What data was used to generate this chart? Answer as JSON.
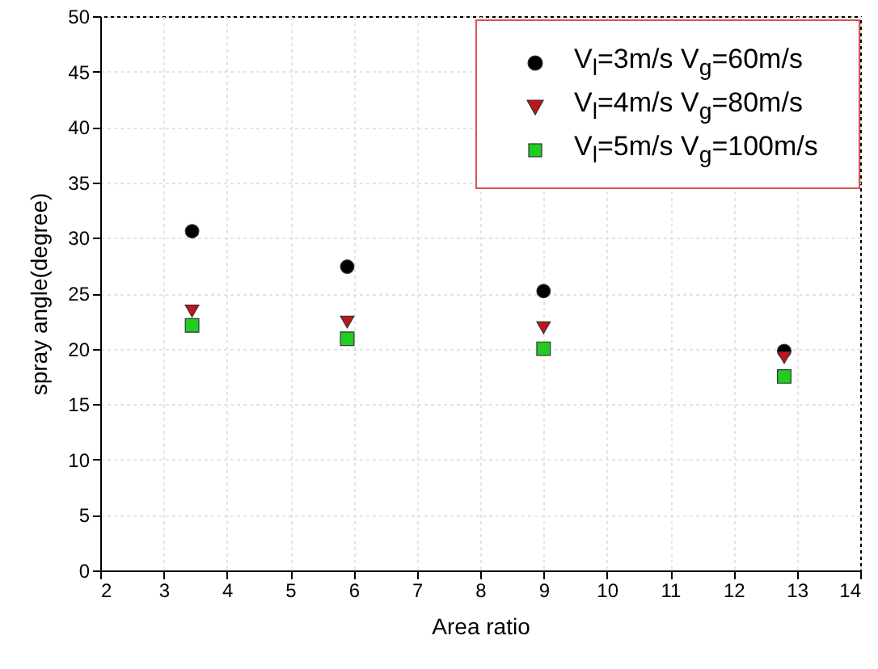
{
  "chart_data": {
    "type": "scatter",
    "xlabel": "Area ratio",
    "ylabel": "spray angle(degree)",
    "x": [
      3.45,
      5.9,
      9.0,
      12.8
    ],
    "series": [
      {
        "name": "V$_{l}$=3m/s V$_{g}$=60m/s",
        "color": "#000000",
        "marker": "circle",
        "values": [
          30.6,
          27.4,
          25.2,
          19.8
        ]
      },
      {
        "name": "V$_{l}$=4m/s V$_{g}$=80m/s",
        "color": "#c0141e",
        "marker": "triangle",
        "values": [
          23.4,
          22.4,
          21.9,
          19.2
        ]
      },
      {
        "name": "V$_{l}$=5m/s V$_{g}$=100m/s",
        "color": "#22cc22",
        "marker": "square",
        "values": [
          22.1,
          20.9,
          20.0,
          17.5
        ]
      }
    ],
    "xlim": [
      2,
      14
    ],
    "xticks": [
      2,
      3,
      4,
      5,
      6,
      7,
      8,
      9,
      10,
      11,
      12,
      13,
      14
    ],
    "ylim": [
      0,
      50
    ],
    "yticks": [
      0,
      5,
      10,
      15,
      20,
      25,
      30,
      35,
      40,
      45,
      50
    ],
    "grid": true,
    "legend": "top right"
  }
}
